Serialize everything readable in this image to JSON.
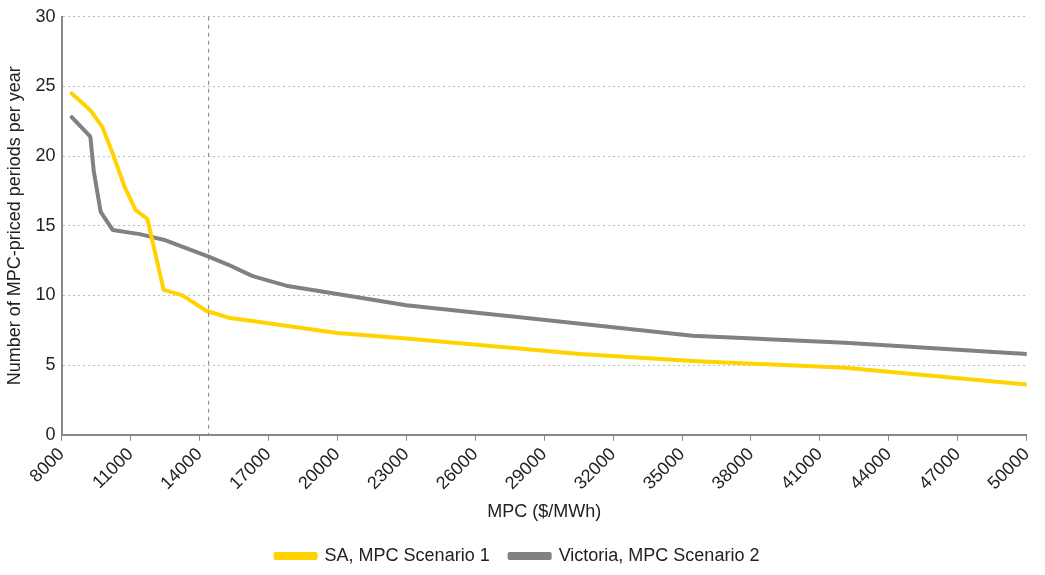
{
  "chart_data": {
    "type": "line",
    "xlabel": "MPC ($/MWh)",
    "ylabel": "Number of MPC-priced periods per year",
    "xlim": [
      8000,
      50000
    ],
    "xticks": [
      8000,
      11000,
      14000,
      17000,
      20000,
      23000,
      26000,
      29000,
      32000,
      35000,
      38000,
      41000,
      44000,
      47000,
      50000
    ],
    "ylim": [
      0,
      30
    ],
    "yticks": [
      0,
      5,
      10,
      15,
      20,
      25,
      30
    ],
    "grid": "y",
    "legend": "bottom",
    "marker": "none",
    "line_style": "solid",
    "ref_lines": [
      {
        "axis": "x",
        "value": 14400,
        "line_style": "dashed",
        "color": "#808080"
      }
    ],
    "series": [
      {
        "name": "SA, MPC Scenario 1",
        "color": "#ffd200",
        "x": [
          8440,
          9250,
          9770,
          10220,
          10740,
          11230,
          11730,
          12440,
          13260,
          14290,
          15260,
          20000,
          23000,
          30560,
          35450,
          42100,
          50000
        ],
        "values": [
          24.5,
          23.3,
          22.1,
          20.2,
          17.8,
          16.1,
          15.5,
          10.4,
          10.0,
          8.9,
          8.4,
          7.3,
          6.9,
          5.8,
          5.3,
          4.8,
          3.6
        ]
      },
      {
        "name": "Victoria, MPC Scenario 2",
        "color": "#808085",
        "x": [
          8440,
          9250,
          9400,
          9700,
          10220,
          11400,
          12440,
          14370,
          15260,
          16290,
          17770,
          20000,
          23000,
          25860,
          35450,
          42100,
          50000
        ],
        "values": [
          22.8,
          21.4,
          18.9,
          16.0,
          14.7,
          14.4,
          14.0,
          12.8,
          12.2,
          11.4,
          10.7,
          10.1,
          9.3,
          8.8,
          7.1,
          6.6,
          5.8
        ]
      }
    ]
  }
}
